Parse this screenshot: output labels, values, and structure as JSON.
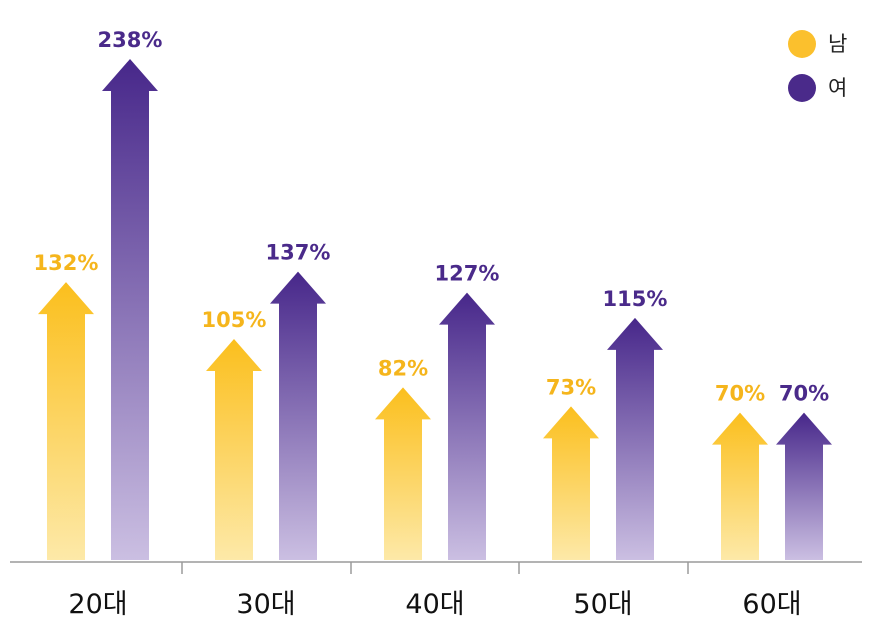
{
  "chart_data": {
    "type": "bar",
    "categories": [
      "20대",
      "30대",
      "40대",
      "50대",
      "60대"
    ],
    "series": [
      {
        "name": "남",
        "values": [
          132,
          105,
          82,
          73,
          70
        ],
        "labels": [
          "132%",
          "105%",
          "82%",
          "73%",
          "70%"
        ],
        "color": "#fbc02d"
      },
      {
        "name": "여",
        "values": [
          238,
          137,
          127,
          115,
          70
        ],
        "labels": [
          "238%",
          "137%",
          "127%",
          "115%",
          "70%"
        ],
        "color": "#4a2a8a"
      }
    ],
    "legend_position": "top-right",
    "grid": false
  },
  "legend": {
    "items": [
      {
        "label": "남"
      },
      {
        "label": "여"
      }
    ]
  },
  "colors": {
    "male": "#fbc02d",
    "female": "#4a2a8a",
    "male_label": "#f5b51c",
    "female_label": "#4a2a8a",
    "axis": "#9a9a9a"
  }
}
